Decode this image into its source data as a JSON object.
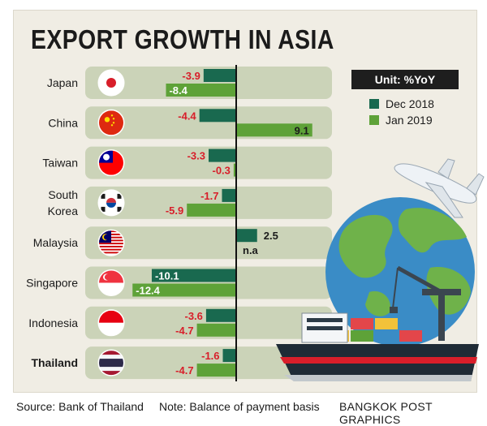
{
  "title": "EXPORT GROWTH IN ASIA",
  "unit": "Unit: %YoY",
  "legend": [
    {
      "label": "Dec 2018",
      "color": "#19694f"
    },
    {
      "label": "Jan 2019",
      "color": "#5ea238"
    }
  ],
  "footer": {
    "source": "Source: Bank of Thailand",
    "note": "Note: Balance of payment basis",
    "credit": "BANGKOK POST GRAPHICS"
  },
  "colors": {
    "dec": "#19694f",
    "jan": "#5ea238",
    "row_bg": "#cbd3b8",
    "neg_label": "#d81e2a",
    "pos_label": "#1b1b1b",
    "axis": "#111111"
  },
  "chart_data": {
    "type": "bar",
    "orientation": "horizontal",
    "categories": [
      "Japan",
      "China",
      "Taiwan",
      "South Korea",
      "Malaysia",
      "Singapore",
      "Indonesia",
      "Thailand"
    ],
    "category_lines": [
      [
        "Japan"
      ],
      [
        "China"
      ],
      [
        "Taiwan"
      ],
      [
        "South",
        "Korea"
      ],
      [
        "Malaysia"
      ],
      [
        "Singapore"
      ],
      [
        "Indonesia"
      ],
      [
        "Thailand"
      ]
    ],
    "flags": [
      "japan-flag-icon",
      "china-flag-icon",
      "taiwan-flag-icon",
      "south-korea-flag-icon",
      "malaysia-flag-icon",
      "singapore-flag-icon",
      "indonesia-flag-icon",
      "thailand-flag-icon"
    ],
    "highlight": "Thailand",
    "series": [
      {
        "name": "Dec 2018",
        "values": [
          -3.9,
          -4.4,
          -3.3,
          -1.7,
          2.5,
          -10.1,
          -3.6,
          -1.6
        ]
      },
      {
        "name": "Jan 2019",
        "values": [
          -8.4,
          9.1,
          -0.3,
          -5.9,
          null,
          -12.4,
          -4.7,
          -4.7
        ]
      }
    ],
    "value_labels": [
      [
        "-3.9",
        "-4.4",
        "-3.3",
        "-1.7",
        "2.5",
        "-10.1",
        "-3.6",
        "-1.6"
      ],
      [
        "-8.4",
        "9.1",
        "-0.3",
        "-5.9",
        "n.a",
        "-12.4",
        "-4.7",
        "-4.7"
      ]
    ],
    "xlim": [
      -12.4,
      9.1
    ]
  }
}
